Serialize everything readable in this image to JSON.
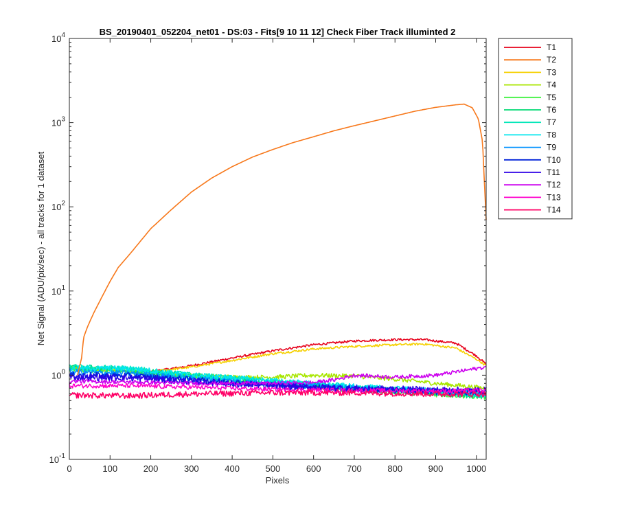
{
  "chart_data": {
    "type": "line",
    "title": "BS_20190401_052204_net01 - DS:03 - Fits[9  10  11  12]   Check Fiber     Track illuminted 2",
    "xlabel": "Pixels",
    "ylabel": "Net Signal (ADU/pix/sec) - all tracks for 1 dataset",
    "xlim": [
      0,
      1024
    ],
    "ylim": [
      0.1,
      10000
    ],
    "yscale": "log",
    "xticks": [
      0,
      100,
      200,
      300,
      400,
      500,
      600,
      700,
      800,
      900,
      1000
    ],
    "yticks": [
      {
        "mantissa": "10",
        "exp": "-1",
        "value": 0.1
      },
      {
        "mantissa": "10",
        "exp": "0",
        "value": 1
      },
      {
        "mantissa": "10",
        "exp": "1",
        "value": 10
      },
      {
        "mantissa": "10",
        "exp": "2",
        "value": 100
      },
      {
        "mantissa": "10",
        "exp": "3",
        "value": 1000
      },
      {
        "mantissa": "10",
        "exp": "4",
        "value": 10000
      }
    ],
    "grid": false,
    "legend_position": "outside-right",
    "series": [
      {
        "name": "T1",
        "color": "#e6001a",
        "noise": 0.03,
        "points": [
          [
            0,
            1.2
          ],
          [
            100,
            1.15
          ],
          [
            200,
            1.1
          ],
          [
            300,
            1.3
          ],
          [
            400,
            1.6
          ],
          [
            500,
            1.95
          ],
          [
            600,
            2.3
          ],
          [
            700,
            2.55
          ],
          [
            800,
            2.65
          ],
          [
            870,
            2.65
          ],
          [
            950,
            2.4
          ],
          [
            1000,
            1.7
          ],
          [
            1024,
            1.35
          ]
        ]
      },
      {
        "name": "T2",
        "color": "#f7781b",
        "noise": 0,
        "points": [
          [
            20,
            1.0
          ],
          [
            30,
            1.6
          ],
          [
            35,
            2.8
          ],
          [
            45,
            3.8
          ],
          [
            60,
            5.5
          ],
          [
            80,
            8.5
          ],
          [
            100,
            13
          ],
          [
            120,
            19
          ],
          [
            150,
            28
          ],
          [
            200,
            55
          ],
          [
            250,
            92
          ],
          [
            300,
            150
          ],
          [
            350,
            220
          ],
          [
            400,
            300
          ],
          [
            450,
            390
          ],
          [
            500,
            480
          ],
          [
            550,
            580
          ],
          [
            600,
            680
          ],
          [
            650,
            800
          ],
          [
            700,
            920
          ],
          [
            750,
            1050
          ],
          [
            800,
            1200
          ],
          [
            850,
            1370
          ],
          [
            900,
            1520
          ],
          [
            950,
            1630
          ],
          [
            970,
            1660
          ],
          [
            990,
            1500
          ],
          [
            1005,
            1100
          ],
          [
            1015,
            600
          ],
          [
            1024,
            70
          ]
        ]
      },
      {
        "name": "T3",
        "color": "#f5d000",
        "noise": 0.03,
        "points": [
          [
            0,
            1.2
          ],
          [
            100,
            1.15
          ],
          [
            200,
            1.1
          ],
          [
            300,
            1.25
          ],
          [
            400,
            1.5
          ],
          [
            500,
            1.8
          ],
          [
            600,
            2.05
          ],
          [
            700,
            2.2
          ],
          [
            800,
            2.3
          ],
          [
            870,
            2.35
          ],
          [
            950,
            2.1
          ],
          [
            1000,
            1.55
          ],
          [
            1024,
            1.3
          ]
        ]
      },
      {
        "name": "T4",
        "color": "#a8e600",
        "noise": 0.06,
        "points": [
          [
            0,
            1.2
          ],
          [
            100,
            1.15
          ],
          [
            200,
            1.05
          ],
          [
            300,
            1.0
          ],
          [
            400,
            0.95
          ],
          [
            500,
            0.95
          ],
          [
            600,
            1.0
          ],
          [
            700,
            0.98
          ],
          [
            800,
            0.9
          ],
          [
            900,
            0.8
          ],
          [
            1000,
            0.72
          ],
          [
            1024,
            0.7
          ]
        ]
      },
      {
        "name": "T5",
        "color": "#3ff23f",
        "noise": 0.08,
        "points": [
          [
            0,
            1.2
          ],
          [
            150,
            1.1
          ],
          [
            300,
            0.95
          ],
          [
            500,
            0.8
          ],
          [
            700,
            0.68
          ],
          [
            900,
            0.6
          ],
          [
            1024,
            0.56
          ]
        ]
      },
      {
        "name": "T6",
        "color": "#00d973",
        "noise": 0.08,
        "points": [
          [
            0,
            1.25
          ],
          [
            150,
            1.15
          ],
          [
            300,
            0.98
          ],
          [
            500,
            0.82
          ],
          [
            700,
            0.7
          ],
          [
            900,
            0.62
          ],
          [
            1024,
            0.55
          ]
        ]
      },
      {
        "name": "T7",
        "color": "#00e6b8",
        "noise": 0.08,
        "points": [
          [
            0,
            1.25
          ],
          [
            150,
            1.2
          ],
          [
            300,
            1.0
          ],
          [
            500,
            0.85
          ],
          [
            700,
            0.72
          ],
          [
            900,
            0.63
          ],
          [
            1024,
            0.58
          ]
        ]
      },
      {
        "name": "T8",
        "color": "#00e6ee",
        "noise": 0.08,
        "points": [
          [
            0,
            1.2
          ],
          [
            150,
            1.2
          ],
          [
            300,
            1.0
          ],
          [
            500,
            0.86
          ],
          [
            700,
            0.73
          ],
          [
            900,
            0.65
          ],
          [
            1024,
            0.6
          ]
        ]
      },
      {
        "name": "T9",
        "color": "#0091ff",
        "noise": 0.08,
        "points": [
          [
            0,
            1.1
          ],
          [
            150,
            1.05
          ],
          [
            300,
            0.92
          ],
          [
            500,
            0.8
          ],
          [
            700,
            0.7
          ],
          [
            900,
            0.64
          ],
          [
            1024,
            0.62
          ]
        ]
      },
      {
        "name": "T10",
        "color": "#0022d9",
        "noise": 0.09,
        "points": [
          [
            0,
            1.0
          ],
          [
            150,
            0.98
          ],
          [
            300,
            0.88
          ],
          [
            500,
            0.76
          ],
          [
            700,
            0.68
          ],
          [
            900,
            0.64
          ],
          [
            1024,
            0.63
          ]
        ]
      },
      {
        "name": "T11",
        "color": "#2e00e6",
        "noise": 0.09,
        "points": [
          [
            0,
            0.95
          ],
          [
            150,
            0.93
          ],
          [
            300,
            0.85
          ],
          [
            500,
            0.75
          ],
          [
            700,
            0.7
          ],
          [
            900,
            0.67
          ],
          [
            1024,
            0.66
          ]
        ]
      },
      {
        "name": "T12",
        "color": "#cc00ee",
        "noise": 0.05,
        "points": [
          [
            0,
            0.85
          ],
          [
            150,
            0.83
          ],
          [
            300,
            0.8
          ],
          [
            500,
            0.8
          ],
          [
            600,
            0.82
          ],
          [
            650,
            0.88
          ],
          [
            700,
            1.0
          ],
          [
            800,
            0.95
          ],
          [
            900,
            1.0
          ],
          [
            1000,
            1.2
          ],
          [
            1024,
            1.25
          ]
        ]
      },
      {
        "name": "T13",
        "color": "#ff00cc",
        "noise": 0.06,
        "points": [
          [
            0,
            0.75
          ],
          [
            150,
            0.75
          ],
          [
            300,
            0.72
          ],
          [
            500,
            0.68
          ],
          [
            700,
            0.66
          ],
          [
            900,
            0.65
          ],
          [
            1024,
            0.66
          ]
        ]
      },
      {
        "name": "T14",
        "color": "#ff0066",
        "noise": 0.08,
        "points": [
          [
            0,
            0.58
          ],
          [
            150,
            0.57
          ],
          [
            300,
            0.6
          ],
          [
            500,
            0.62
          ],
          [
            700,
            0.62
          ],
          [
            900,
            0.6
          ],
          [
            1024,
            0.6
          ]
        ]
      }
    ]
  }
}
